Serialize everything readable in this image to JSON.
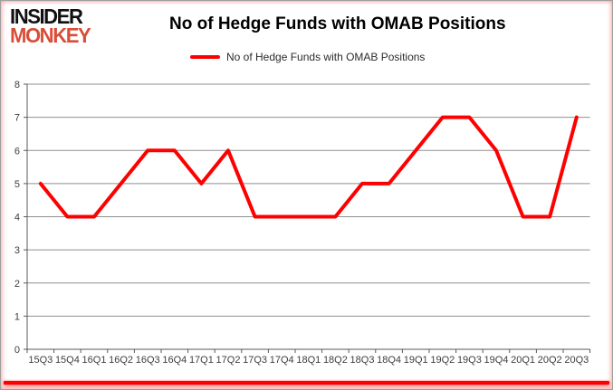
{
  "logo": {
    "line1": "INSIDER",
    "line2": "MONKEY"
  },
  "header": {
    "title": "No of Hedge Funds with OMAB Positions"
  },
  "legend": {
    "label": "No of Hedge Funds with OMAB Positions"
  },
  "colors": {
    "series_red": "#ff0000",
    "logo_red": "#d94e38",
    "gridline": "#8f8f8f",
    "axis": "#595959",
    "tick_label": "#3d3d3d",
    "bottom_border_red": "#fe0000"
  },
  "chart_data": {
    "type": "line",
    "title": "No of Hedge Funds with OMAB Positions",
    "categories": [
      "15Q3",
      "15Q4",
      "16Q1",
      "16Q2",
      "16Q3",
      "16Q4",
      "17Q1",
      "17Q2",
      "17Q3",
      "17Q4",
      "18Q1",
      "18Q2",
      "18Q3",
      "18Q4",
      "19Q1",
      "19Q2",
      "19Q3",
      "19Q4",
      "20Q1",
      "20Q2",
      "20Q3"
    ],
    "series": [
      {
        "name": "No of Hedge Funds with OMAB Positions",
        "color": "#ff0000",
        "values": [
          5,
          4,
          4,
          5,
          6,
          6,
          5,
          6,
          4,
          4,
          4,
          4,
          5,
          5,
          6,
          7,
          7,
          6,
          4,
          4,
          7
        ]
      }
    ],
    "xlabel": "",
    "ylabel": "",
    "ylim": [
      0,
      8
    ],
    "ytick_step": 1,
    "grid": true,
    "legend_position": "top-center"
  }
}
